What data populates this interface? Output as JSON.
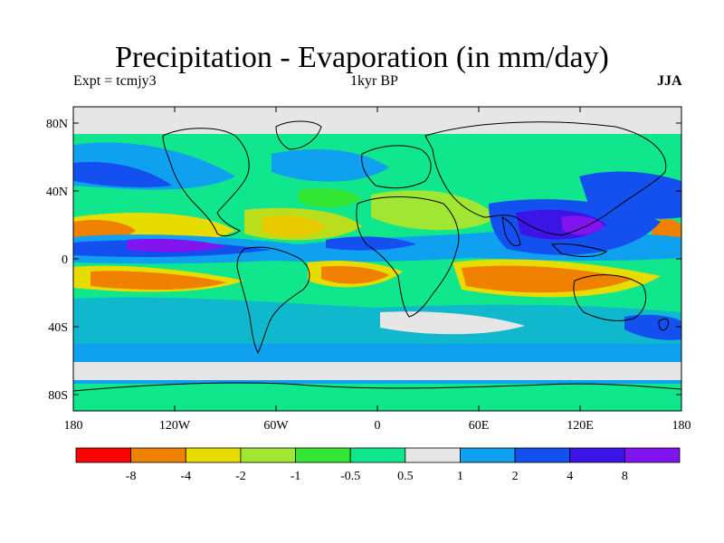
{
  "title": "Precipitation - Evaporation (in mm/day)",
  "subtitle_left": "Expt = tcmjy3",
  "subtitle_center": "1kyr BP",
  "subtitle_right": "JJA",
  "lat_labels": [
    "80N",
    "40N",
    "0",
    "40S",
    "80S"
  ],
  "lon_labels": [
    "180",
    "120W",
    "60W",
    "0",
    "60E",
    "120E",
    "180"
  ],
  "colorbar": {
    "colors": [
      "#ff0000",
      "#f08000",
      "#e6dc00",
      "#a0e632",
      "#32e632",
      "#10e68c",
      "#e6e6e6",
      "#10a0f0",
      "#1450f0",
      "#3c14e6",
      "#8214f0"
    ],
    "labels": [
      "-8",
      "-4",
      "-2",
      "-1",
      "-0.5",
      "0.5",
      "1",
      "2",
      "4",
      "8"
    ]
  },
  "colors": {
    "ocean_background": "#10e68c",
    "coastline": "#000000"
  }
}
